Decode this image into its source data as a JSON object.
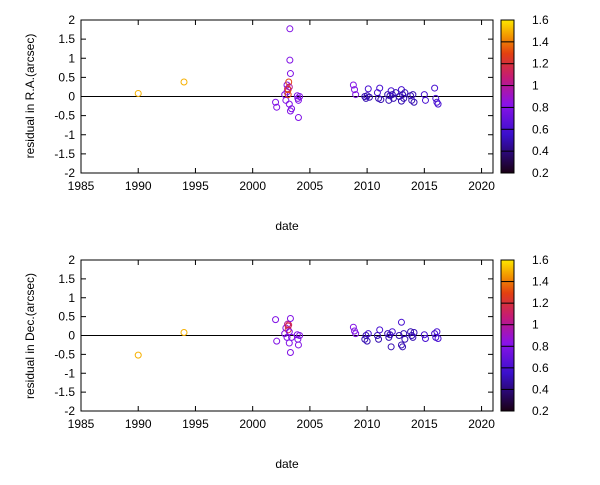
{
  "chart_data": [
    {
      "type": "scatter",
      "xlabel": "date",
      "ylabel": "residual in R.A.(arcsec)",
      "xlim": [
        1985,
        2021
      ],
      "ylim": [
        -2,
        2
      ],
      "xticks": [
        "1985",
        "1990",
        "1995",
        "2000",
        "2005",
        "2010",
        "2015",
        "2020"
      ],
      "yticks": [
        "2",
        "1.5",
        "1",
        "0.5",
        "0",
        "-0.5",
        "-1",
        "-1.5",
        "-2"
      ],
      "zero_line": true,
      "grid": false,
      "marker": "open-circle",
      "colorbar": {
        "min": 0.2,
        "max": 1.6,
        "ticks": [
          "0.2",
          "0.4",
          "0.6",
          "0.8",
          "1",
          "1.2",
          "1.4",
          "1.6"
        ],
        "palette": "gnuplot"
      },
      "points": [
        {
          "x": 1990.0,
          "y": 0.08,
          "c": 1.5
        },
        {
          "x": 1994.0,
          "y": 0.38,
          "c": 1.5
        },
        {
          "x": 2002.0,
          "y": -0.15,
          "c": 0.8
        },
        {
          "x": 2002.1,
          "y": -0.28,
          "c": 0.8
        },
        {
          "x": 2002.8,
          "y": 0.05,
          "c": 0.8
        },
        {
          "x": 2002.9,
          "y": -0.1,
          "c": 0.8
        },
        {
          "x": 2003.0,
          "y": 0.3,
          "c": 0.8
        },
        {
          "x": 2003.0,
          "y": 0.12,
          "c": 0.85
        },
        {
          "x": 2003.05,
          "y": 0.2,
          "c": 1.0
        },
        {
          "x": 2003.1,
          "y": 0.18,
          "c": 1.3
        },
        {
          "x": 2003.1,
          "y": 0.05,
          "c": 1.3
        },
        {
          "x": 2003.15,
          "y": 0.38,
          "c": 1.3
        },
        {
          "x": 2003.2,
          "y": 0.25,
          "c": 1.0
        },
        {
          "x": 2003.2,
          "y": -0.2,
          "c": 0.8
        },
        {
          "x": 2003.25,
          "y": 1.77,
          "c": 0.8
        },
        {
          "x": 2003.25,
          "y": 0.95,
          "c": 0.8
        },
        {
          "x": 2003.3,
          "y": 0.6,
          "c": 0.8
        },
        {
          "x": 2003.3,
          "y": -0.38,
          "c": 0.8
        },
        {
          "x": 2003.4,
          "y": -0.32,
          "c": 0.8
        },
        {
          "x": 2003.9,
          "y": 0.02,
          "c": 0.8
        },
        {
          "x": 2003.95,
          "y": -0.05,
          "c": 0.8
        },
        {
          "x": 2004.0,
          "y": -0.1,
          "c": 0.8
        },
        {
          "x": 2004.0,
          "y": -0.55,
          "c": 0.8
        },
        {
          "x": 2004.1,
          "y": 0.0,
          "c": 0.8
        },
        {
          "x": 2008.8,
          "y": 0.3,
          "c": 0.8
        },
        {
          "x": 2008.9,
          "y": 0.18,
          "c": 0.8
        },
        {
          "x": 2009.0,
          "y": 0.05,
          "c": 0.8
        },
        {
          "x": 2009.8,
          "y": 0.0,
          "c": 0.5
        },
        {
          "x": 2009.9,
          "y": -0.05,
          "c": 0.5
        },
        {
          "x": 2010.0,
          "y": 0.02,
          "c": 0.5
        },
        {
          "x": 2010.1,
          "y": 0.2,
          "c": 0.6
        },
        {
          "x": 2010.2,
          "y": -0.02,
          "c": 0.5
        },
        {
          "x": 2010.9,
          "y": 0.1,
          "c": 0.6
        },
        {
          "x": 2011.0,
          "y": -0.05,
          "c": 0.5
        },
        {
          "x": 2011.1,
          "y": 0.22,
          "c": 0.6
        },
        {
          "x": 2011.2,
          "y": -0.08,
          "c": 0.5
        },
        {
          "x": 2011.8,
          "y": 0.05,
          "c": 0.5
        },
        {
          "x": 2011.9,
          "y": -0.1,
          "c": 0.5
        },
        {
          "x": 2012.0,
          "y": 0.02,
          "c": 0.5
        },
        {
          "x": 2012.1,
          "y": 0.15,
          "c": 0.6
        },
        {
          "x": 2012.2,
          "y": 0.05,
          "c": 0.5
        },
        {
          "x": 2012.3,
          "y": -0.05,
          "c": 0.5
        },
        {
          "x": 2012.5,
          "y": 0.1,
          "c": 0.5
        },
        {
          "x": 2012.8,
          "y": 0.0,
          "c": 0.5
        },
        {
          "x": 2013.0,
          "y": 0.18,
          "c": 0.6
        },
        {
          "x": 2013.0,
          "y": -0.12,
          "c": 0.5
        },
        {
          "x": 2013.1,
          "y": 0.05,
          "c": 0.5
        },
        {
          "x": 2013.2,
          "y": -0.05,
          "c": 0.5
        },
        {
          "x": 2013.3,
          "y": 0.1,
          "c": 0.5
        },
        {
          "x": 2013.8,
          "y": 0.02,
          "c": 0.5
        },
        {
          "x": 2013.9,
          "y": -0.1,
          "c": 0.5
        },
        {
          "x": 2014.0,
          "y": 0.05,
          "c": 0.5
        },
        {
          "x": 2014.1,
          "y": -0.15,
          "c": 0.5
        },
        {
          "x": 2015.0,
          "y": 0.05,
          "c": 0.6
        },
        {
          "x": 2015.1,
          "y": -0.1,
          "c": 0.6
        },
        {
          "x": 2015.9,
          "y": 0.22,
          "c": 0.6
        },
        {
          "x": 2016.0,
          "y": -0.05,
          "c": 0.6
        },
        {
          "x": 2016.1,
          "y": -0.15,
          "c": 0.6
        },
        {
          "x": 2016.2,
          "y": -0.2,
          "c": 0.6
        }
      ]
    },
    {
      "type": "scatter",
      "xlabel": "date",
      "ylabel": "residual in Dec.(arcsec)",
      "xlim": [
        1985,
        2021
      ],
      "ylim": [
        -2,
        2
      ],
      "xticks": [
        "1985",
        "1990",
        "1995",
        "2000",
        "2005",
        "2010",
        "2015",
        "2020"
      ],
      "yticks": [
        "2",
        "1.5",
        "1",
        "0.5",
        "0",
        "-0.5",
        "-1",
        "-1.5",
        "-2"
      ],
      "zero_line": true,
      "grid": false,
      "marker": "open-circle",
      "colorbar": {
        "min": 0.2,
        "max": 1.6,
        "ticks": [
          "0.2",
          "0.4",
          "0.6",
          "0.8",
          "1",
          "1.2",
          "1.4",
          "1.6"
        ],
        "palette": "gnuplot"
      },
      "points": [
        {
          "x": 1990.0,
          "y": -0.52,
          "c": 1.5
        },
        {
          "x": 1994.0,
          "y": 0.08,
          "c": 1.5
        },
        {
          "x": 2002.0,
          "y": 0.42,
          "c": 0.8
        },
        {
          "x": 2002.1,
          "y": -0.15,
          "c": 0.8
        },
        {
          "x": 2002.8,
          "y": 0.05,
          "c": 0.8
        },
        {
          "x": 2002.9,
          "y": 0.2,
          "c": 0.8
        },
        {
          "x": 2003.0,
          "y": -0.05,
          "c": 0.8
        },
        {
          "x": 2003.05,
          "y": 0.3,
          "c": 1.0
        },
        {
          "x": 2003.1,
          "y": 0.25,
          "c": 1.15
        },
        {
          "x": 2003.1,
          "y": 0.15,
          "c": 1.15
        },
        {
          "x": 2003.15,
          "y": 0.28,
          "c": 1.15
        },
        {
          "x": 2003.2,
          "y": 0.1,
          "c": 0.8
        },
        {
          "x": 2003.2,
          "y": -0.2,
          "c": 0.8
        },
        {
          "x": 2003.3,
          "y": 0.45,
          "c": 0.8
        },
        {
          "x": 2003.3,
          "y": -0.45,
          "c": 0.8
        },
        {
          "x": 2003.4,
          "y": -0.05,
          "c": 0.8
        },
        {
          "x": 2003.9,
          "y": 0.02,
          "c": 0.8
        },
        {
          "x": 2003.95,
          "y": -0.1,
          "c": 0.8
        },
        {
          "x": 2004.0,
          "y": -0.25,
          "c": 0.8
        },
        {
          "x": 2004.1,
          "y": 0.0,
          "c": 0.8
        },
        {
          "x": 2008.8,
          "y": 0.22,
          "c": 0.8
        },
        {
          "x": 2008.9,
          "y": 0.12,
          "c": 0.8
        },
        {
          "x": 2009.0,
          "y": 0.05,
          "c": 0.8
        },
        {
          "x": 2009.8,
          "y": -0.1,
          "c": 0.5
        },
        {
          "x": 2009.9,
          "y": 0.0,
          "c": 0.5
        },
        {
          "x": 2010.0,
          "y": -0.15,
          "c": 0.5
        },
        {
          "x": 2010.1,
          "y": 0.05,
          "c": 0.6
        },
        {
          "x": 2010.9,
          "y": 0.0,
          "c": 0.5
        },
        {
          "x": 2011.0,
          "y": -0.1,
          "c": 0.5
        },
        {
          "x": 2011.1,
          "y": 0.15,
          "c": 0.6
        },
        {
          "x": 2011.8,
          "y": 0.05,
          "c": 0.5
        },
        {
          "x": 2011.9,
          "y": -0.05,
          "c": 0.5
        },
        {
          "x": 2012.0,
          "y": 0.02,
          "c": 0.5
        },
        {
          "x": 2012.1,
          "y": -0.3,
          "c": 0.5
        },
        {
          "x": 2012.2,
          "y": 0.1,
          "c": 0.6
        },
        {
          "x": 2012.8,
          "y": 0.0,
          "c": 0.5
        },
        {
          "x": 2013.0,
          "y": 0.35,
          "c": 0.6
        },
        {
          "x": 2013.0,
          "y": -0.25,
          "c": 0.5
        },
        {
          "x": 2013.1,
          "y": -0.3,
          "c": 0.5
        },
        {
          "x": 2013.2,
          "y": 0.05,
          "c": 0.5
        },
        {
          "x": 2013.3,
          "y": -0.1,
          "c": 0.5
        },
        {
          "x": 2013.8,
          "y": 0.1,
          "c": 0.5
        },
        {
          "x": 2013.9,
          "y": 0.0,
          "c": 0.5
        },
        {
          "x": 2014.0,
          "y": -0.05,
          "c": 0.5
        },
        {
          "x": 2014.1,
          "y": 0.08,
          "c": 0.5
        },
        {
          "x": 2015.0,
          "y": 0.02,
          "c": 0.6
        },
        {
          "x": 2015.1,
          "y": -0.08,
          "c": 0.6
        },
        {
          "x": 2015.9,
          "y": 0.05,
          "c": 0.6
        },
        {
          "x": 2016.0,
          "y": -0.05,
          "c": 0.6
        },
        {
          "x": 2016.1,
          "y": 0.1,
          "c": 0.6
        },
        {
          "x": 2016.2,
          "y": -0.08,
          "c": 0.6
        }
      ]
    }
  ]
}
